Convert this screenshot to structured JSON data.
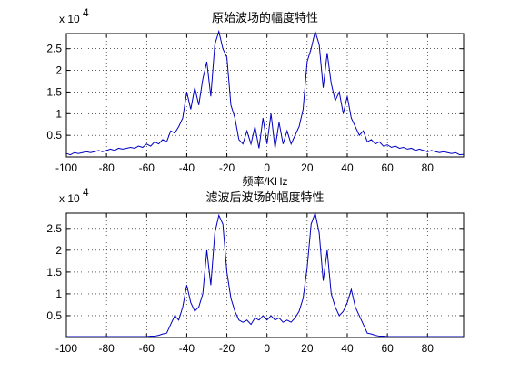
{
  "chart_data": [
    {
      "type": "line",
      "title": "原始波场的幅度特性",
      "xlabel": "频率/KHz",
      "y_multiplier": {
        "base": "x 10",
        "exponent": "4"
      },
      "color": "#0000c0",
      "grid": true,
      "xlim": [
        -100,
        98
      ],
      "xticks": [
        -100,
        -80,
        -60,
        -40,
        -20,
        0,
        20,
        40,
        60,
        80
      ],
      "ylim": [
        0,
        2.85
      ],
      "yticks": [
        0.5,
        1,
        1.5,
        2,
        2.5
      ],
      "x": [
        -100,
        -98,
        -96,
        -94,
        -92,
        -90,
        -88,
        -86,
        -84,
        -82,
        -80,
        -78,
        -76,
        -74,
        -72,
        -70,
        -68,
        -66,
        -64,
        -62,
        -60,
        -58,
        -56,
        -54,
        -52,
        -50,
        -48,
        -46,
        -44,
        -42,
        -40,
        -38,
        -36,
        -34,
        -32,
        -30,
        -28,
        -26,
        -24,
        -22,
        -20,
        -18,
        -16,
        -14,
        -12,
        -10,
        -8,
        -6,
        -4,
        -2,
        0,
        2,
        4,
        6,
        8,
        10,
        12,
        14,
        16,
        18,
        20,
        22,
        24,
        26,
        28,
        30,
        32,
        34,
        36,
        38,
        40,
        42,
        44,
        46,
        48,
        50,
        52,
        54,
        56,
        58,
        60,
        62,
        64,
        66,
        68,
        70,
        72,
        74,
        76,
        78,
        80,
        82,
        84,
        86,
        88,
        90,
        92,
        94,
        96,
        98
      ],
      "values": [
        0.08,
        0.05,
        0.1,
        0.08,
        0.1,
        0.12,
        0.1,
        0.12,
        0.15,
        0.12,
        0.15,
        0.18,
        0.15,
        0.2,
        0.18,
        0.2,
        0.22,
        0.2,
        0.25,
        0.22,
        0.3,
        0.25,
        0.35,
        0.3,
        0.4,
        0.35,
        0.6,
        0.55,
        0.7,
        0.9,
        1.5,
        1.1,
        1.6,
        1.2,
        1.8,
        2.2,
        1.4,
        2.6,
        2.9,
        2.5,
        2.3,
        1.2,
        0.9,
        0.4,
        0.3,
        0.6,
        0.3,
        0.7,
        0.2,
        0.9,
        0.3,
        1.0,
        0.2,
        0.8,
        0.3,
        0.6,
        0.3,
        0.5,
        0.7,
        1.1,
        2.2,
        2.5,
        2.9,
        2.6,
        1.6,
        2.4,
        1.7,
        1.3,
        1.5,
        1.0,
        1.4,
        0.9,
        0.7,
        0.5,
        0.6,
        0.35,
        0.4,
        0.3,
        0.35,
        0.25,
        0.28,
        0.22,
        0.25,
        0.2,
        0.22,
        0.18,
        0.2,
        0.15,
        0.18,
        0.15,
        0.12,
        0.15,
        0.12,
        0.1,
        0.12,
        0.1,
        0.08,
        0.1,
        0.05,
        0.06
      ]
    },
    {
      "type": "line",
      "title": "滤波后波场的幅度特性",
      "y_multiplier": {
        "base": "x 10",
        "exponent": "4"
      },
      "color": "#0000c0",
      "grid": true,
      "xlim": [
        -100,
        98
      ],
      "xticks": [
        -100,
        -80,
        -60,
        -40,
        -20,
        0,
        20,
        40,
        60,
        80
      ],
      "ylim": [
        0,
        2.85
      ],
      "yticks": [
        0.5,
        1,
        1.5,
        2,
        2.5
      ],
      "x": [
        -100,
        -98,
        -96,
        -94,
        -92,
        -90,
        -88,
        -86,
        -84,
        -82,
        -80,
        -78,
        -76,
        -74,
        -72,
        -70,
        -68,
        -66,
        -64,
        -62,
        -60,
        -58,
        -56,
        -54,
        -52,
        -50,
        -48,
        -46,
        -44,
        -42,
        -40,
        -38,
        -36,
        -34,
        -32,
        -30,
        -28,
        -26,
        -24,
        -22,
        -20,
        -18,
        -16,
        -14,
        -12,
        -10,
        -8,
        -6,
        -4,
        -2,
        0,
        2,
        4,
        6,
        8,
        10,
        12,
        14,
        16,
        18,
        20,
        22,
        24,
        26,
        28,
        30,
        32,
        34,
        36,
        38,
        40,
        42,
        44,
        46,
        48,
        50,
        52,
        54,
        56,
        58,
        60,
        62,
        64,
        66,
        68,
        70,
        72,
        74,
        76,
        78,
        80,
        82,
        84,
        86,
        88,
        90,
        92,
        94,
        96,
        98
      ],
      "values": [
        0.02,
        0.02,
        0.02,
        0.02,
        0.02,
        0.02,
        0.02,
        0.02,
        0.02,
        0.02,
        0.02,
        0.02,
        0.02,
        0.02,
        0.02,
        0.02,
        0.02,
        0.02,
        0.02,
        0.02,
        0.02,
        0.03,
        0.03,
        0.05,
        0.08,
        0.1,
        0.3,
        0.5,
        0.4,
        0.7,
        1.2,
        0.8,
        0.6,
        0.7,
        1.0,
        2.0,
        1.2,
        2.4,
        2.8,
        2.6,
        1.5,
        0.9,
        0.6,
        0.4,
        0.35,
        0.4,
        0.3,
        0.45,
        0.4,
        0.5,
        0.4,
        0.5,
        0.4,
        0.45,
        0.35,
        0.4,
        0.35,
        0.45,
        0.6,
        0.9,
        1.6,
        2.6,
        2.85,
        2.4,
        1.3,
        2.0,
        1.0,
        0.7,
        0.5,
        0.6,
        0.8,
        1.1,
        0.7,
        0.5,
        0.3,
        0.1,
        0.08,
        0.05,
        0.03,
        0.03,
        0.02,
        0.02,
        0.02,
        0.02,
        0.02,
        0.02,
        0.02,
        0.02,
        0.02,
        0.02,
        0.02,
        0.02,
        0.02,
        0.02,
        0.02,
        0.02,
        0.02,
        0.02,
        0.02,
        0.02
      ]
    }
  ]
}
